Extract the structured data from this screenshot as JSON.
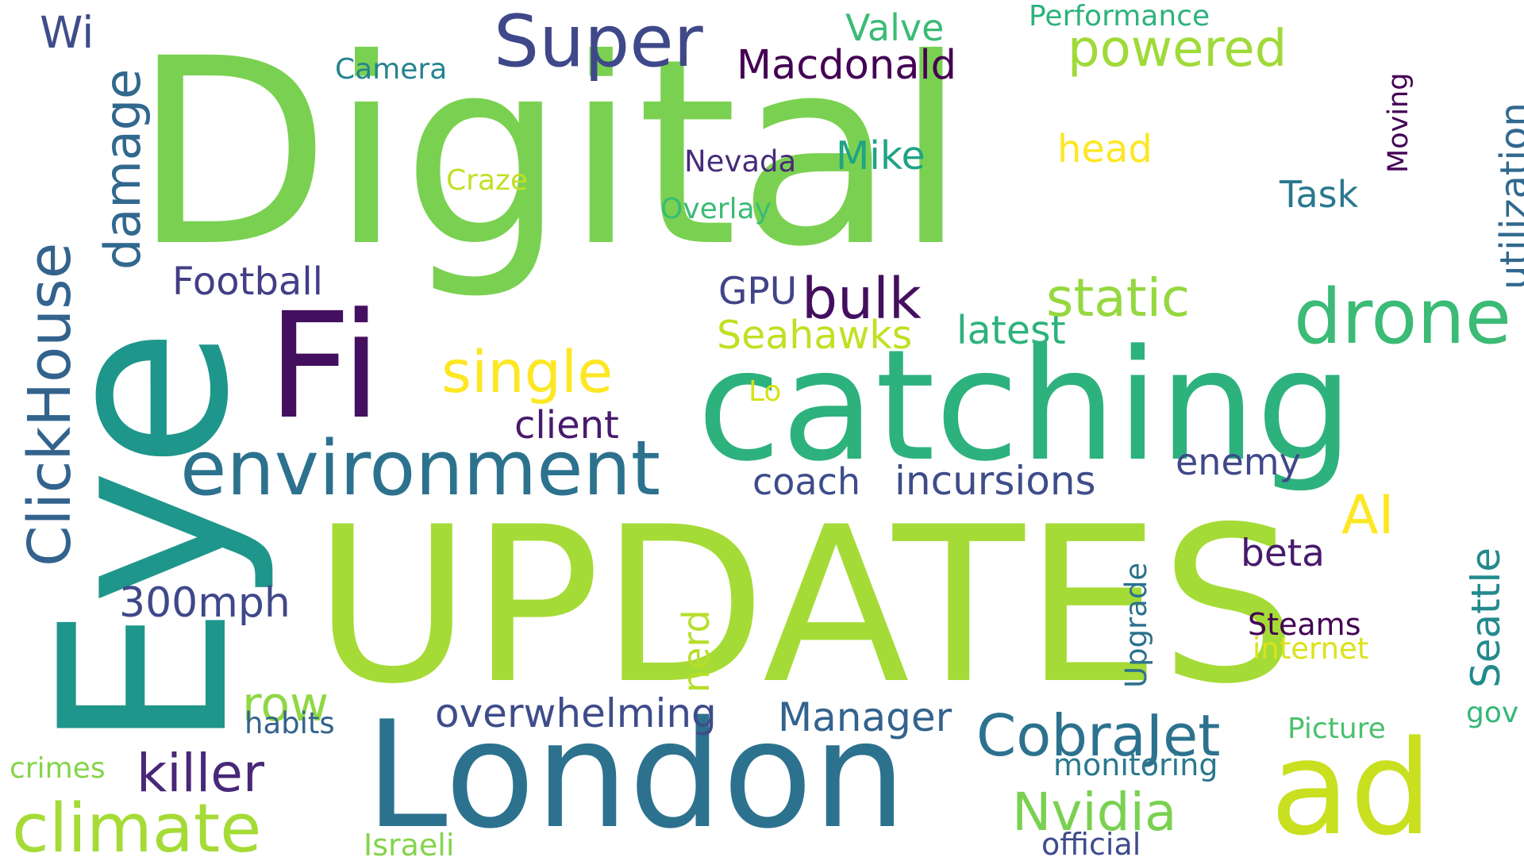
{
  "words": [
    {
      "text": "Digital",
      "color": "#7ad151"
    },
    {
      "text": "UPDATES",
      "color": "#a5db36"
    },
    {
      "text": "Eye",
      "color": "#1f968b"
    },
    {
      "text": "catching",
      "color": "#2db27d"
    },
    {
      "text": "Fi",
      "color": "#440f5f"
    },
    {
      "text": "London",
      "color": "#2c728e"
    },
    {
      "text": "ad",
      "color": "#c8e020"
    },
    {
      "text": "environment",
      "color": "#2c728e"
    },
    {
      "text": "drone",
      "color": "#3bbb75"
    },
    {
      "text": "Super",
      "color": "#3f4889"
    },
    {
      "text": "ClickHouse",
      "color": "#33638d"
    },
    {
      "text": "climate",
      "color": "#a5db36"
    },
    {
      "text": "CobraJet",
      "color": "#2c728e"
    },
    {
      "text": "single",
      "color": "#fde725"
    },
    {
      "text": "powered",
      "color": "#a0da39"
    },
    {
      "text": "static",
      "color": "#95d840"
    },
    {
      "text": "bulk",
      "color": "#440f5f"
    },
    {
      "text": "killer",
      "color": "#482878"
    },
    {
      "text": "Nvidia",
      "color": "#7ad151"
    },
    {
      "text": "damage",
      "color": "#31688e"
    },
    {
      "text": "AI",
      "color": "#fde725"
    },
    {
      "text": "utilization",
      "color": "#31688e"
    },
    {
      "text": "Seattle",
      "color": "#238a8d"
    },
    {
      "text": "Manager",
      "color": "#33638d"
    },
    {
      "text": "row",
      "color": "#8fd744"
    },
    {
      "text": "300mph",
      "color": "#3f4889"
    },
    {
      "text": "Macdonald",
      "color": "#440154"
    },
    {
      "text": "overwhelming",
      "color": "#3e4c8a"
    },
    {
      "text": "incursions",
      "color": "#3e4c8a"
    },
    {
      "text": "Mike",
      "color": "#20a386"
    },
    {
      "text": "latest",
      "color": "#2db27d"
    },
    {
      "text": "Seahawks",
      "color": "#c2df23"
    },
    {
      "text": "Football",
      "color": "#433e85"
    },
    {
      "text": "client",
      "color": "#481a6c"
    },
    {
      "text": "beta",
      "color": "#481a6c"
    },
    {
      "text": "coach",
      "color": "#3e4c8a"
    },
    {
      "text": "enemy",
      "color": "#3f4889"
    },
    {
      "text": "Valve",
      "color": "#3bbb75"
    },
    {
      "text": "head",
      "color": "#fde725"
    },
    {
      "text": "Task",
      "color": "#2a788e"
    },
    {
      "text": "GPU",
      "color": "#414487"
    },
    {
      "text": "nerd",
      "color": "#b5de2b"
    },
    {
      "text": "Wi",
      "color": "#3e4c8a"
    },
    {
      "text": "Steams",
      "color": "#440154"
    },
    {
      "text": "Upgrade",
      "color": "#2c728e"
    },
    {
      "text": "monitoring",
      "color": "#2a788e"
    },
    {
      "text": "official",
      "color": "#3e4c8a"
    },
    {
      "text": "Israeli",
      "color": "#84d44b"
    },
    {
      "text": "internet",
      "color": "#dae319"
    },
    {
      "text": "Picture",
      "color": "#4ac16d"
    },
    {
      "text": "habits",
      "color": "#33638d"
    },
    {
      "text": "crimes",
      "color": "#84d44b"
    },
    {
      "text": "Nevada",
      "color": "#472c7a"
    },
    {
      "text": "Moving",
      "color": "#440154"
    },
    {
      "text": "Overlay",
      "color": "#3bbb75"
    },
    {
      "text": "Craze",
      "color": "#c2df23"
    },
    {
      "text": "Camera",
      "color": "#25848e"
    },
    {
      "text": "Performance",
      "color": "#2db27d"
    },
    {
      "text": "gov",
      "color": "#35b779"
    },
    {
      "text": "Lo",
      "color": "#d5e21a"
    }
  ]
}
